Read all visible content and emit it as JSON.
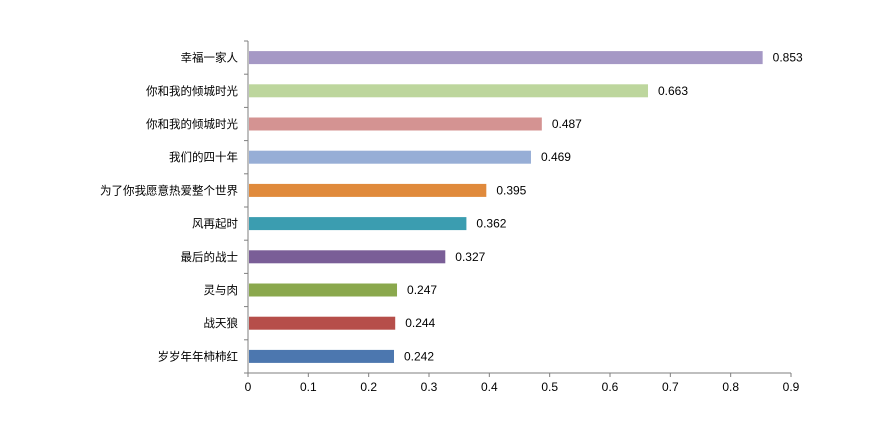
{
  "chart_data": {
    "type": "bar",
    "orientation": "horizontal",
    "categories": [
      "幸福一家人",
      "你和我的倾城时光",
      "你和我的倾城时光",
      "我们的四十年",
      "为了你我愿意热爱整个世界",
      "风再起时",
      "最后的战士",
      "灵与肉",
      "战天狼",
      "岁岁年年柿柿红"
    ],
    "values": [
      0.853,
      0.663,
      0.487,
      0.469,
      0.395,
      0.362,
      0.327,
      0.247,
      0.244,
      0.242
    ],
    "value_labels": [
      "0.853",
      "0.663",
      "0.487",
      "0.469",
      "0.395",
      "0.362",
      "0.327",
      "0.247",
      "0.244",
      "0.242"
    ],
    "colors": [
      "#A598C5",
      "#BDD69D",
      "#D49392",
      "#97AED6",
      "#E08A3C",
      "#3B9DB0",
      "#7A5E97",
      "#8AA84D",
      "#B64E4A",
      "#4C77AF"
    ],
    "xlim": [
      0,
      0.9
    ],
    "x_ticks": [
      "0",
      "0.1",
      "0.2",
      "0.3",
      "0.4",
      "0.5",
      "0.6",
      "0.7",
      "0.8",
      "0.9"
    ],
    "title": "",
    "xlabel": "",
    "ylabel": "",
    "grid": false,
    "legend": "none"
  }
}
